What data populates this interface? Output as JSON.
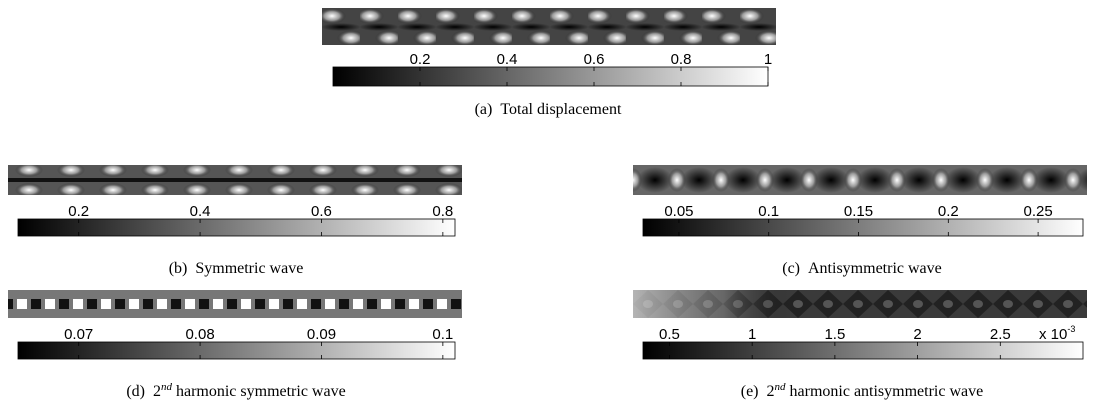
{
  "panels": [
    {
      "label": "(a)",
      "caption": [
        {
          "text": "Total displacement"
        }
      ],
      "colorbar": {
        "lim": [
          0,
          1
        ],
        "ticks": [
          0.2,
          0.4,
          0.6,
          0.8,
          1
        ]
      }
    },
    {
      "label": "(b)",
      "caption": [
        {
          "text": "Symmetric wave"
        }
      ],
      "colorbar": {
        "lim": [
          0.1,
          0.82
        ],
        "ticks": [
          0.2,
          0.4,
          0.6,
          0.8
        ]
      }
    },
    {
      "label": "(c)",
      "caption": [
        {
          "text": "Antisymmetric wave"
        }
      ],
      "colorbar": {
        "lim": [
          0.03,
          0.275
        ],
        "ticks": [
          0.05,
          0.1,
          0.15,
          0.2,
          0.25
        ]
      }
    },
    {
      "label": "(d)",
      "caption": [
        {
          "text": "2"
        },
        {
          "text": "nd",
          "sup": true
        },
        {
          "text": "harmonic symmetric wave"
        }
      ],
      "colorbar": {
        "lim": [
          0.065,
          0.101
        ],
        "ticks": [
          0.07,
          0.08,
          0.09,
          0.1
        ]
      }
    },
    {
      "label": "(e)",
      "caption": [
        {
          "text": "2"
        },
        {
          "text": "nd",
          "sup": true
        },
        {
          "text": "harmonic antisymmetric wave"
        }
      ],
      "colorbar": {
        "lim": [
          0.34,
          3.0
        ],
        "ticks": [
          0.5,
          1,
          1.5,
          2,
          2.5
        ],
        "multiplier": {
          "base": "x 10",
          "exponent": "-3"
        }
      }
    }
  ]
}
